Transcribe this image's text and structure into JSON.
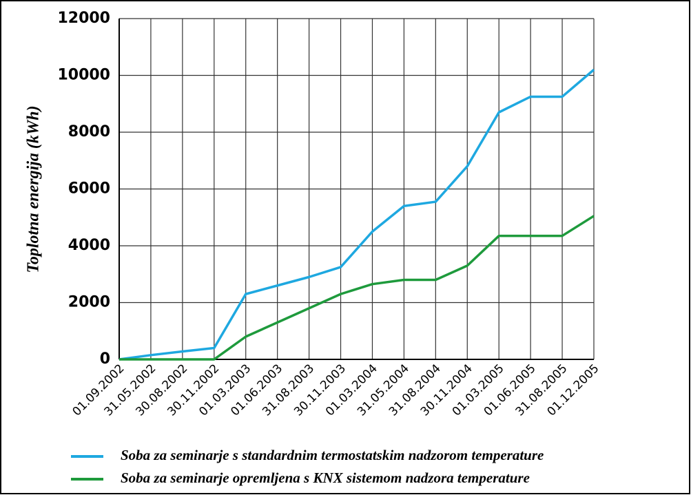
{
  "chart_data": {
    "type": "line",
    "ylabel": "Toplotna energija (kWh)",
    "categories": [
      "01.09.2002",
      "31.05.2002",
      "30.08.2002",
      "30.11.2002",
      "01.03.2003",
      "01.06.2003",
      "31.08.2003",
      "30.11.2003",
      "01.03.2004",
      "31.05.2004",
      "31.08.2004",
      "30.11.2004",
      "01.03.2005",
      "01.06.2005",
      "31.08.2005",
      "01.12.2005"
    ],
    "series": [
      {
        "name": "Soba za seminarje s standardnim termostatskim nadzorom temperature",
        "color": "#1ea8e0",
        "values": [
          0,
          150,
          280,
          400,
          2300,
          2600,
          2900,
          3250,
          4500,
          5400,
          5550,
          6800,
          8700,
          9250,
          9250,
          10200
        ]
      },
      {
        "name": "Soba za seminarje opremljena s KNX sistemom nadzora temperature",
        "color": "#1e9a3c",
        "values": [
          0,
          0,
          0,
          0,
          800,
          1300,
          1800,
          2300,
          2650,
          2800,
          2800,
          3300,
          4350,
          4350,
          4350,
          5050
        ]
      }
    ],
    "ylim": [
      0,
      12000
    ],
    "yticks": [
      0,
      2000,
      4000,
      6000,
      8000,
      10000,
      12000
    ],
    "grid": true
  }
}
